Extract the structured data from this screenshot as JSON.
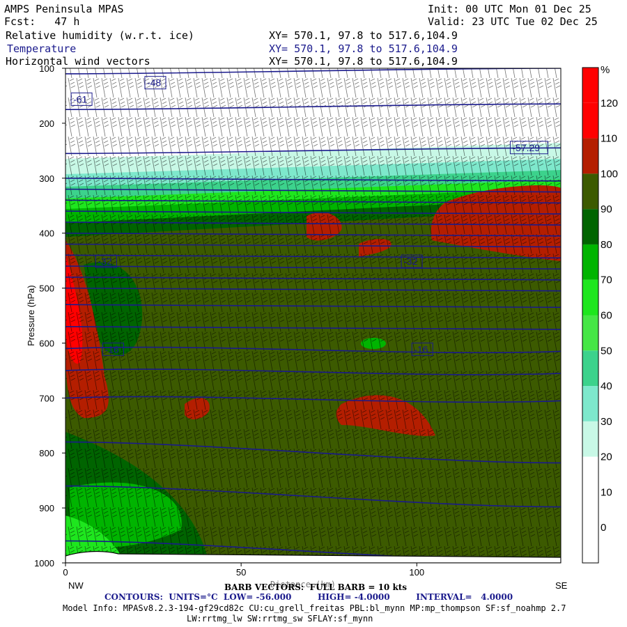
{
  "header": {
    "model": "AMPS Peninsula MPAS",
    "init": "Init: 00 UTC Mon 01 Dec 25",
    "fcst": "Fcst:   47 h",
    "valid": "Valid: 23 UTC Tue 02 Dec 25",
    "field1": "Relative humidity (w.r.t. ice)",
    "field2": "Temperature",
    "field3": "Horizontal wind vectors",
    "xy": "XY= 570.1, 97.8 to 517.6,104.9"
  },
  "footer": {
    "barb": "BARB VECTORS:  FULL BARB = 10 kts",
    "distance_overlap": "Distance (km)",
    "contours": "CONTOURS:  UNITS=°C  LOW= -56.000         HIGH= -4.0000         INTERVAL=   4.0000",
    "model_info": "Model Info: MPASv8.2.3-194-gf29cd82c CU:cu_grell_freitas PBL:bl_mynn MP:mp_thompson SF:sf_noahmp 2.7",
    "model_info2": "LW:rrtmg_lw SW:rrtmg_sw SFLAY:sf_mynn"
  },
  "chart_data": {
    "type": "heatmap",
    "title": "Relative humidity (w.r.t. ice)",
    "xlabel": "Distance (km)",
    "ylabel": "Pressure (hPa)",
    "xlim": [
      0,
      141
    ],
    "ylim": [
      1000,
      100
    ],
    "x_ticks": [
      0,
      50,
      100
    ],
    "y_ticks": [
      100,
      200,
      300,
      400,
      500,
      600,
      700,
      800,
      900,
      1000
    ],
    "x_end_labels": [
      "NW",
      "SE"
    ],
    "colorbar": {
      "unit": "%",
      "levels": [
        0,
        10,
        20,
        30,
        40,
        50,
        60,
        70,
        80,
        90,
        100,
        110,
        120
      ],
      "colors": [
        "#ffffff",
        "#ffffff",
        "#ffffff",
        "#c8f8e6",
        "#7ee8cc",
        "#3cd28c",
        "#46e646",
        "#1ee61e",
        "#00b400",
        "#006400",
        "#3c5a00",
        "#b41e00",
        "#ff0000"
      ]
    },
    "temperature_contours": {
      "units": "°C",
      "low": -56.0,
      "high": -4.0,
      "interval": 4.0,
      "labels": [
        {
          "text": "-48",
          "x": 23,
          "p": 130
        },
        {
          "text": "-61",
          "x": 2,
          "p": 160
        },
        {
          "text": "-57.29",
          "x": 127,
          "p": 248
        },
        {
          "text": "-32",
          "x": 9,
          "p": 455
        },
        {
          "text": "-32",
          "x": 96,
          "p": 455
        },
        {
          "text": "-16",
          "x": 11,
          "p": 615
        },
        {
          "text": "-16",
          "x": 99,
          "p": 615
        }
      ]
    },
    "wind_barbs": "Horizontal wind vectors, full barb = 10 kts"
  }
}
